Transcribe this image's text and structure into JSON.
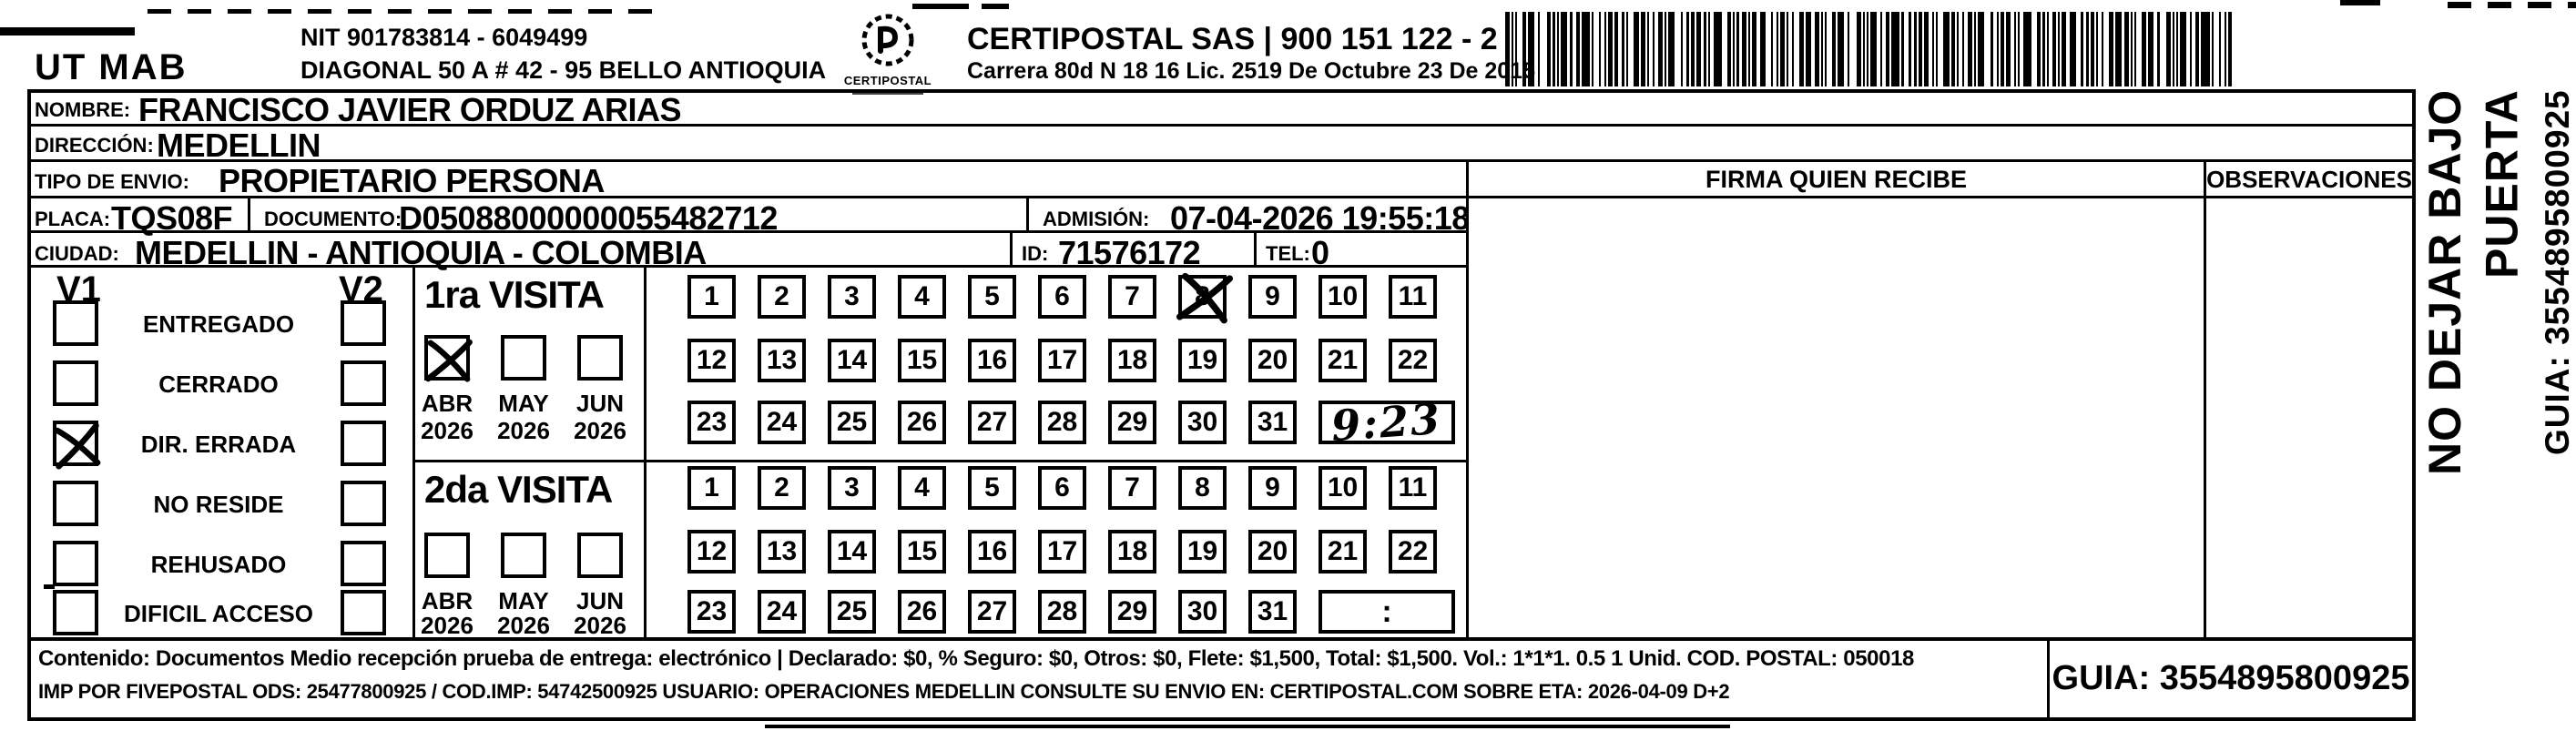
{
  "header": {
    "sender_code": "UT MAB",
    "nit_line": "NIT 901783814 - 6049499",
    "sender_address": "DIAGONAL 50 A # 42 - 95  BELLO  ANTIOQUIA",
    "logo_text": "CERTIPOSTAL",
    "company_line": "CERTIPOSTAL SAS | 900 151 122 - 2",
    "company_address": "Carrera 80d N 18 16  Lic. 2519 De Octubre 23 De 2015"
  },
  "shipment": {
    "nombre_label": "NOMBRE:",
    "nombre": "FRANCISCO JAVIER ORDUZ ARIAS",
    "direccion_label": "DIRECCIÓN:",
    "direccion": "MEDELLIN",
    "tipo_envio_label": "TIPO DE ENVIO:",
    "tipo_envio": "PROPIETARIO PERSONA",
    "placa_label": "PLACA:",
    "placa": "TQS08F",
    "documento_label": "DOCUMENTO:",
    "documento": "D05088000000055482712",
    "admision_label": "ADMISIÓN:",
    "admision": "07-04-2026 19:55:18",
    "ciudad_label": "CIUDAD:",
    "ciudad": "MEDELLIN - ANTIOQUIA - COLOMBIA",
    "id_label": "ID:",
    "id_value": "71576172",
    "tel_label": "TEL:",
    "tel_value": "0"
  },
  "status_panel": {
    "visit1_header": "V1",
    "visit2_header": "V2",
    "items": [
      {
        "label": "ENTREGADO",
        "v1_checked": false,
        "v2_checked": false
      },
      {
        "label": "CERRADO",
        "v1_checked": false,
        "v2_checked": false
      },
      {
        "label": "DIR. ERRADA",
        "v1_checked": true,
        "v2_checked": false
      },
      {
        "label": "NO RESIDE",
        "v1_checked": false,
        "v2_checked": false
      },
      {
        "label": "REHUSADO",
        "v1_checked": false,
        "v2_checked": false
      },
      {
        "label": "DIFICIL ACCESO",
        "v1_checked": false,
        "v2_checked": false
      }
    ]
  },
  "visits": [
    {
      "title": "1ra VISITA",
      "months": [
        {
          "month": "ABR",
          "year": "2026",
          "checked": true
        },
        {
          "month": "MAY",
          "year": "2026",
          "checked": false
        },
        {
          "month": "JUN",
          "year": "2026",
          "checked": false
        }
      ],
      "days": [
        1,
        2,
        3,
        4,
        5,
        6,
        7,
        8,
        9,
        10,
        11,
        12,
        13,
        14,
        15,
        16,
        17,
        18,
        19,
        20,
        21,
        22,
        23,
        24,
        25,
        26,
        27,
        28,
        29,
        30,
        31
      ],
      "marked_day": 8,
      "time_value": "9:23",
      "time_handwritten": true
    },
    {
      "title": "2da VISITA",
      "months": [
        {
          "month": "ABR",
          "year": "2026",
          "checked": false
        },
        {
          "month": "MAY",
          "year": "2026",
          "checked": false
        },
        {
          "month": "JUN",
          "year": "2026",
          "checked": false
        }
      ],
      "days": [
        1,
        2,
        3,
        4,
        5,
        6,
        7,
        8,
        9,
        10,
        11,
        12,
        13,
        14,
        15,
        16,
        17,
        18,
        19,
        20,
        21,
        22,
        23,
        24,
        25,
        26,
        27,
        28,
        29,
        30,
        31
      ],
      "marked_day": null,
      "time_value": ":",
      "time_handwritten": false
    }
  ],
  "signature_section": {
    "firma_header": "FIRMA QUIEN RECIBE",
    "observaciones_header": "OBSERVACIONES"
  },
  "side_note": {
    "line1": "NO DEJAR BAJO PUERTA",
    "line2": "GUIA: 3554895800925"
  },
  "footer": {
    "line1": "Contenido: Documentos Medio recepción prueba de entrega: electrónico | Declarado: $0, % Seguro: $0, Otros: $0, Flete: $1,500, Total: $1,500. Vol.: 1*1*1. 0.5  1 Unid. COD. POSTAL: 050018",
    "line2": "IMP POR FIVEPOSTAL ODS: 25477800925 / COD.IMP: 54742500925 USUARIO: OPERACIONES MEDELLIN CONSULTE SU ENVIO EN: CERTIPOSTAL.COM SOBRE ETA: 2026-04-09 D+2",
    "guia": "GUIA: 3554895800925"
  },
  "colors": {
    "ink": "#000000",
    "paper": "#ffffff"
  }
}
